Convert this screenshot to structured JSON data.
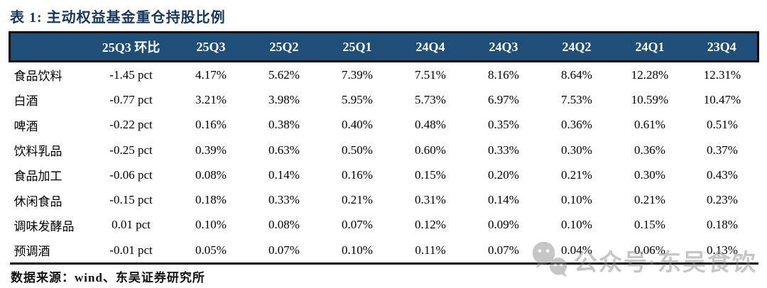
{
  "title": "表 1:  主动权益基金重仓持股比例",
  "table": {
    "columns": [
      "",
      "25Q3 环比",
      "25Q3",
      "25Q2",
      "25Q1",
      "24Q4",
      "24Q3",
      "24Q2",
      "24Q1",
      "23Q4"
    ],
    "rows": [
      {
        "label": "食品饮料",
        "values": [
          "-1.45 pct",
          "4.17%",
          "5.62%",
          "7.39%",
          "7.51%",
          "8.16%",
          "8.64%",
          "12.28%",
          "12.31%"
        ]
      },
      {
        "label": "白酒",
        "values": [
          "-0.77 pct",
          "3.21%",
          "3.98%",
          "5.95%",
          "5.73%",
          "6.97%",
          "7.53%",
          "10.59%",
          "10.47%"
        ]
      },
      {
        "label": "啤酒",
        "values": [
          "-0.22 pct",
          "0.16%",
          "0.38%",
          "0.40%",
          "0.48%",
          "0.35%",
          "0.36%",
          "0.61%",
          "0.51%"
        ]
      },
      {
        "label": "饮料乳品",
        "values": [
          "-0.25 pct",
          "0.39%",
          "0.63%",
          "0.50%",
          "0.60%",
          "0.33%",
          "0.30%",
          "0.36%",
          "0.37%"
        ]
      },
      {
        "label": "食品加工",
        "values": [
          "-0.06 pct",
          "0.08%",
          "0.14%",
          "0.16%",
          "0.15%",
          "0.20%",
          "0.21%",
          "0.30%",
          "0.43%"
        ]
      },
      {
        "label": "休闲食品",
        "values": [
          "-0.15 pct",
          "0.18%",
          "0.33%",
          "0.21%",
          "0.31%",
          "0.14%",
          "0.10%",
          "0.21%",
          "0.23%"
        ]
      },
      {
        "label": "调味发酵品",
        "values": [
          "0.01 pct",
          "0.10%",
          "0.08%",
          "0.07%",
          "0.12%",
          "0.09%",
          "0.10%",
          "0.15%",
          "0.18%"
        ]
      },
      {
        "label": "预调酒",
        "values": [
          "-0.01 pct",
          "0.05%",
          "0.07%",
          "0.10%",
          "0.11%",
          "0.07%",
          "0.04%",
          "0.06%",
          "0.13%"
        ]
      }
    ]
  },
  "footer": "数据来源：wind、东吴证券研究所",
  "watermark": {
    "icon": "wechat-icon",
    "text": "公众号·东吴食饮"
  },
  "colors": {
    "header_bg": "#1F4E79",
    "header_text": "#FFFFFF",
    "title_text": "#17375E",
    "border": "#0A0A0A",
    "watermark": "#8F8F8F"
  }
}
